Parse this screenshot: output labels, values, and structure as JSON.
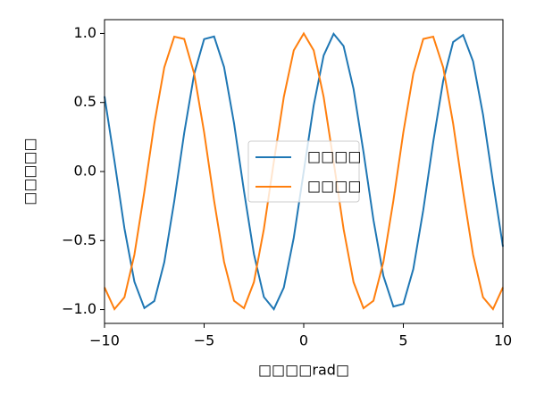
{
  "chart_data": {
    "type": "line",
    "xlabel": "□□□□rad□",
    "ylabel": "□□□□□",
    "x": [
      -10,
      -9.5,
      -9,
      -8.5,
      -8,
      -7.5,
      -7,
      -6.5,
      -6,
      -5.5,
      -5,
      -4.5,
      -4,
      -3.5,
      -3,
      -2.5,
      -2,
      -1.5,
      -1,
      -0.5,
      0,
      0.5,
      1,
      1.5,
      2,
      2.5,
      3,
      3.5,
      4,
      4.5,
      5,
      5.5,
      6,
      6.5,
      7,
      7.5,
      8,
      8.5,
      9,
      9.5,
      10
    ],
    "series": [
      {
        "name": "□□□□",
        "color": "#1f77b4",
        "values": [
          0.544,
          0.075,
          -0.412,
          -0.798,
          -0.989,
          -0.938,
          -0.657,
          -0.215,
          0.279,
          0.706,
          0.959,
          0.978,
          0.757,
          0.351,
          -0.141,
          -0.598,
          -0.909,
          -0.997,
          -0.841,
          -0.479,
          0,
          0.479,
          0.841,
          0.997,
          0.909,
          0.598,
          0.141,
          -0.351,
          -0.757,
          -0.978,
          -0.959,
          -0.706,
          -0.279,
          0.215,
          0.657,
          0.938,
          0.989,
          0.798,
          0.412,
          -0.075,
          -0.544
        ]
      },
      {
        "name": "□□□□",
        "color": "#ff7f0e",
        "values": [
          -0.839,
          -0.997,
          -0.911,
          -0.602,
          -0.146,
          0.347,
          0.754,
          0.977,
          0.96,
          0.709,
          0.284,
          -0.211,
          -0.654,
          -0.936,
          -0.99,
          -0.801,
          -0.416,
          0.071,
          0.54,
          0.878,
          1,
          0.878,
          0.54,
          0.071,
          -0.416,
          -0.801,
          -0.99,
          -0.936,
          -0.654,
          -0.211,
          0.284,
          0.709,
          0.96,
          0.977,
          0.754,
          0.347,
          -0.146,
          -0.602,
          -0.911,
          -0.997,
          -0.839
        ]
      }
    ],
    "xlim": [
      -10,
      10
    ],
    "xticks": [
      {
        "value": -10,
        "label": "−10"
      },
      {
        "value": -5,
        "label": "−5"
      },
      0,
      5,
      10
    ],
    "ylim": [
      -1.1,
      1.1
    ],
    "yticks": [
      {
        "value": -1,
        "label": "−1.0"
      },
      {
        "value": -0.5,
        "label": "−0.5"
      },
      {
        "value": 0,
        "label": "0.0"
      },
      {
        "value": 0.5,
        "label": "0.5"
      },
      {
        "value": 1,
        "label": "1.0"
      }
    ],
    "grid": false,
    "legend": "center"
  }
}
